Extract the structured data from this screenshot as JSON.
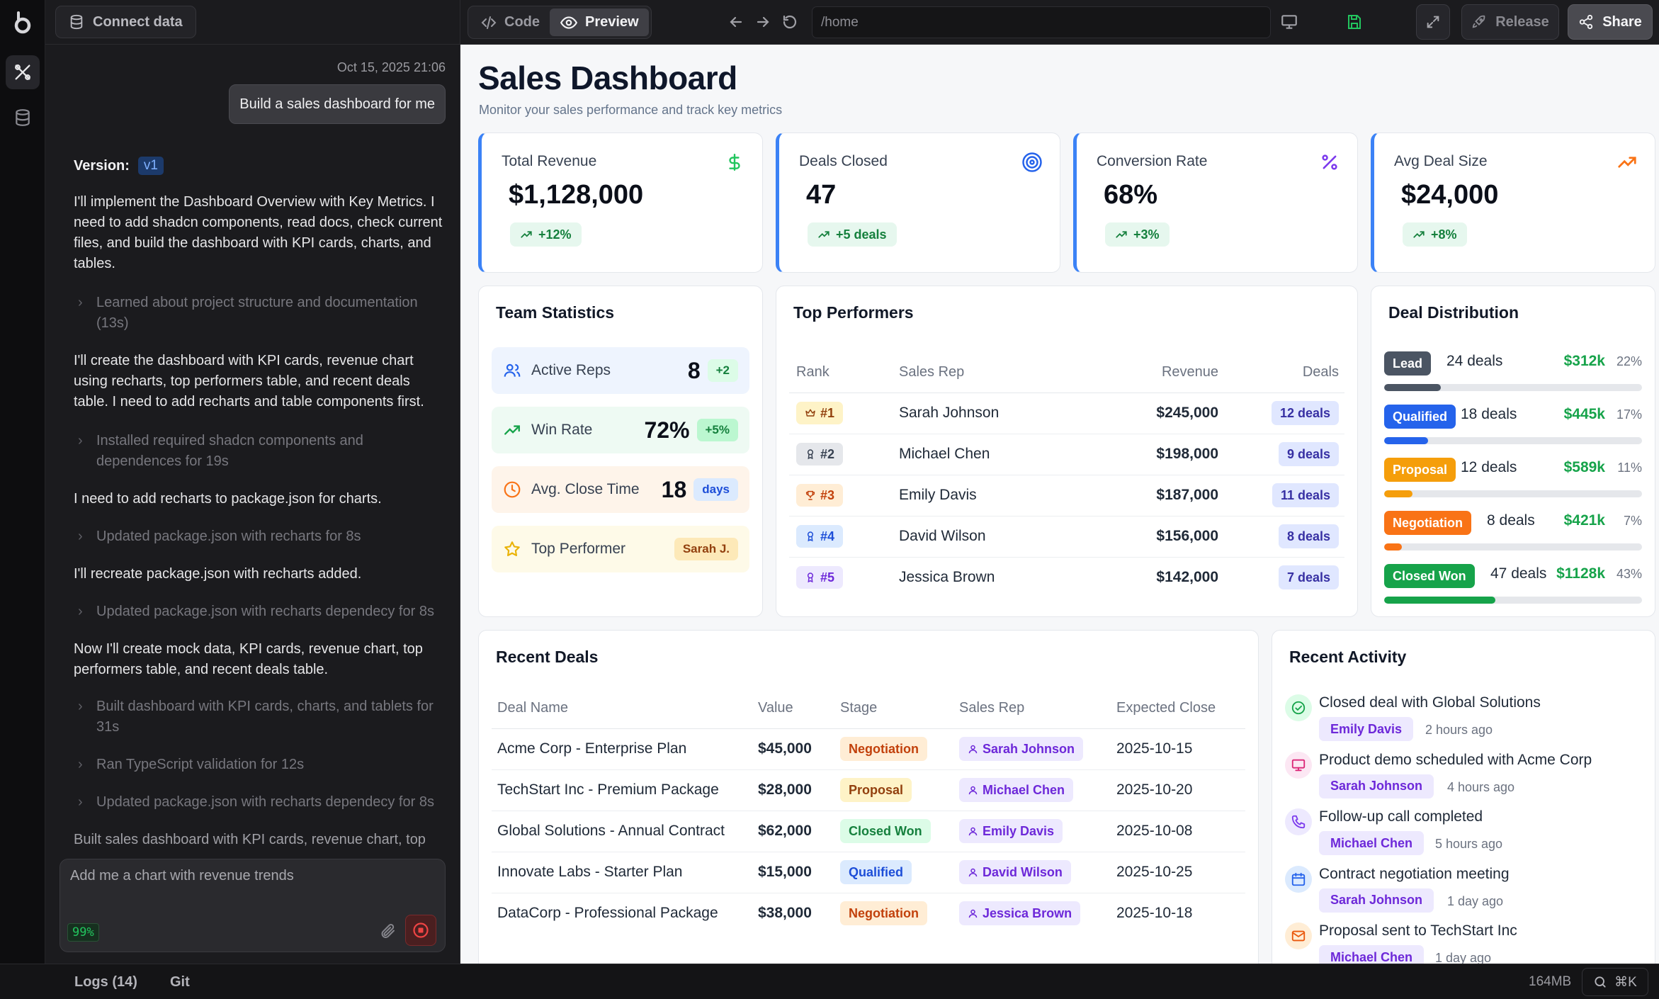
{
  "chat": {
    "connect_label": "Connect data",
    "timestamp": "Oct 15, 2025 21:06",
    "user_message": "Build a sales dashboard for me",
    "version_label": "Version:",
    "version_value": "v1",
    "messages": [
      "I'll implement the Dashboard Overview with Key Metrics. I need to add shadcn components, read docs, check current files, and build the dashboard with KPI cards, charts, and tables.",
      "Learned about project structure and documentation (13s)",
      "I'll create the dashboard with KPI cards, revenue chart using recharts, top performers table, and recent deals table. I need to add recharts and table components first.",
      "Installed required shadcn components and dependences for 19s",
      "I need to add recharts to package.json for charts.",
      "Updated package.json with recharts for 8s",
      "I'll recreate package.json with recharts added.",
      "Updated package.json with recharts dependecy for 8s",
      "Now I'll create mock data, KPI cards, revenue chart, top performers table, and recent deals table.",
      "Built dashboard with KPI cards, charts, and tablets for 31s",
      "Ran TypeScript validation for 12s",
      "Updated package.json with recharts dependecy for 8s",
      "Built sales dashboard with KPI cards, revenue chart, top"
    ],
    "prompt_text": "Add me a chart with revenue trends",
    "usage_pct": "99%"
  },
  "toolbar": {
    "code_label": "Code",
    "preview_label": "Preview",
    "url": "/home",
    "release_label": "Release",
    "share_label": "Share"
  },
  "dashboard": {
    "title": "Sales Dashboard",
    "subtitle": "Monitor your sales performance and track key metrics",
    "kpis": [
      {
        "label": "Total Revenue",
        "value": "$1,128,000",
        "trend": "+12%",
        "icon": "dollar-icon",
        "color": "#22c55e"
      },
      {
        "label": "Deals Closed",
        "value": "47",
        "trend": "+5 deals",
        "icon": "target-icon",
        "color": "#2563eb"
      },
      {
        "label": "Conversion Rate",
        "value": "68%",
        "trend": "+3%",
        "icon": "percent-icon",
        "color": "#7c3aed"
      },
      {
        "label": "Avg Deal Size",
        "value": "$24,000",
        "trend": "+8%",
        "icon": "trending-up-icon",
        "color": "#f97316"
      }
    ],
    "team_stats": {
      "title": "Team Statistics",
      "rows": [
        {
          "label": "Active Reps",
          "value": "8",
          "chip": "+2"
        },
        {
          "label": "Win Rate",
          "value": "72%",
          "chip": "+5%"
        },
        {
          "label": "Avg. Close Time",
          "value": "18",
          "chip": "days"
        },
        {
          "label": "Top Performer",
          "value": "",
          "chip": "Sarah J."
        }
      ]
    },
    "top_performers": {
      "title": "Top Performers",
      "columns": [
        "Rank",
        "Sales Rep",
        "Revenue",
        "Deals"
      ],
      "rows": [
        {
          "rank": "#1",
          "name": "Sarah Johnson",
          "revenue": "$245,000",
          "deals": "12 deals"
        },
        {
          "rank": "#2",
          "name": "Michael Chen",
          "revenue": "$198,000",
          "deals": "9 deals"
        },
        {
          "rank": "#3",
          "name": "Emily Davis",
          "revenue": "$187,000",
          "deals": "11 deals"
        },
        {
          "rank": "#4",
          "name": "David Wilson",
          "revenue": "$156,000",
          "deals": "8 deals"
        },
        {
          "rank": "#5",
          "name": "Jessica Brown",
          "revenue": "$142,000",
          "deals": "7 deals"
        }
      ]
    },
    "distribution": {
      "title": "Deal Distribution",
      "rows": [
        {
          "stage": "Lead",
          "count": "24 deals",
          "amount": "$312k",
          "pct": "22%",
          "fill": 0.22,
          "color": "#4b5563"
        },
        {
          "stage": "Qualified",
          "count": "18 deals",
          "amount": "$445k",
          "pct": "17%",
          "fill": 0.17,
          "color": "#2563eb"
        },
        {
          "stage": "Proposal",
          "count": "12 deals",
          "amount": "$589k",
          "pct": "11%",
          "fill": 0.11,
          "color": "#f59e0b"
        },
        {
          "stage": "Negotiation",
          "count": "8 deals",
          "amount": "$421k",
          "pct": "7%",
          "fill": 0.07,
          "color": "#f97316"
        },
        {
          "stage": "Closed Won",
          "count": "47 deals",
          "amount": "$1128k",
          "pct": "43%",
          "fill": 0.43,
          "color": "#16a34a"
        }
      ]
    },
    "recent_deals": {
      "title": "Recent Deals",
      "columns": [
        "Deal Name",
        "Value",
        "Stage",
        "Sales Rep",
        "Expected Close"
      ],
      "rows": [
        {
          "name": "Acme Corp - Enterprise Plan",
          "value": "$45,000",
          "stage": "Negotiation",
          "rep": "Sarah Johnson",
          "close": "2025-10-15"
        },
        {
          "name": "TechStart Inc - Premium Package",
          "value": "$28,000",
          "stage": "Proposal",
          "rep": "Michael Chen",
          "close": "2025-10-20"
        },
        {
          "name": "Global Solutions - Annual Contract",
          "value": "$62,000",
          "stage": "Closed Won",
          "rep": "Emily Davis",
          "close": "2025-10-08"
        },
        {
          "name": "Innovate Labs - Starter Plan",
          "value": "$15,000",
          "stage": "Qualified",
          "rep": "David Wilson",
          "close": "2025-10-25"
        },
        {
          "name": "DataCorp - Professional Package",
          "value": "$38,000",
          "stage": "Negotiation",
          "rep": "Jessica Brown",
          "close": "2025-10-18"
        }
      ]
    },
    "recent_activity": {
      "title": "Recent Activity",
      "items": [
        {
          "text": "Closed deal with Global Solutions",
          "person": "Emily Davis",
          "time": "2 hours ago"
        },
        {
          "text": "Product demo scheduled with Acme Corp",
          "person": "Sarah Johnson",
          "time": "4 hours ago"
        },
        {
          "text": "Follow-up call completed",
          "person": "Michael Chen",
          "time": "5 hours ago"
        },
        {
          "text": "Contract negotiation meeting",
          "person": "Sarah Johnson",
          "time": "1 day ago"
        },
        {
          "text": "Proposal sent to TechStart Inc",
          "person": "Michael Chen",
          "time": "1 day ago"
        }
      ]
    }
  },
  "status": {
    "logs_label": "Logs (14)",
    "git_label": "Git",
    "memory": "164MB",
    "shortcut": "⌘K"
  }
}
